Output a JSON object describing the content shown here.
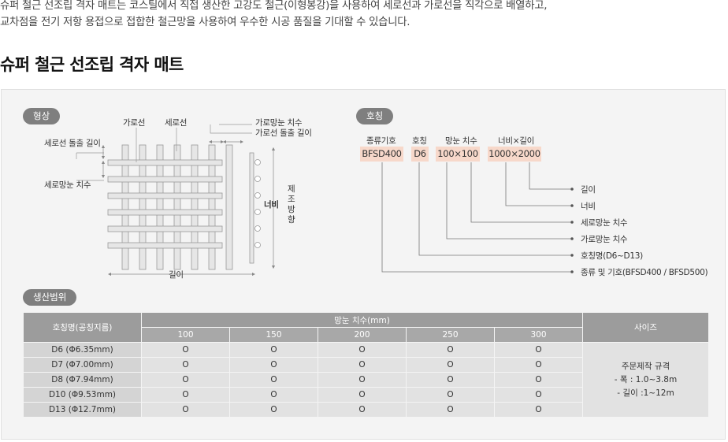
{
  "intro": {
    "line1": "슈퍼 철근 선조립 격자 매트는 코스틸에서 직접 생산한 고강도 철근(이형봉강)을 사용하여 세로선과 가로선을 직각으로 배열하고,",
    "line2": "교차점을 전기 저항 용접으로 접합한 철근망을 사용하여 우수한 시공 품질을 기대할 수 있습니다."
  },
  "title": "슈퍼 철근 선조립 격자 매트",
  "shape": {
    "badge": "형상",
    "labels": {
      "horizontal_bar": "가로선",
      "vertical_bar": "세로선",
      "horizontal_spacing": "가로망눈 치수",
      "horizontal_overhang": "가로선 돌출 길이",
      "vertical_overhang": "세로선 돌출 길이",
      "vertical_spacing": "세로망눈 치수",
      "width": "너비",
      "length": "길이",
      "direction_chars": [
        "제",
        "조",
        "방",
        "향"
      ]
    }
  },
  "designation": {
    "badge": "호칭",
    "headers": [
      "종류기호",
      "호칭",
      "망눈 치수",
      "너비×길이"
    ],
    "values": [
      "BFSD400",
      "D6",
      "100×100",
      "1000×2000"
    ],
    "legend": [
      "길이",
      "너비",
      "세로망눈 치수",
      "가로망눈 치수",
      "호칭명(D6~D13)",
      "종류 및 기호(BFSD400 / BFSD500)"
    ]
  },
  "range": {
    "badge": "생산범위",
    "col_name": "호칭명(공칭지름)",
    "col_mesh": "망눈 치수(mm)",
    "col_size": "사이즈",
    "mesh_sizes": [
      "100",
      "150",
      "200",
      "250",
      "300"
    ],
    "rows": [
      {
        "name": "D6 (Φ6.35mm)",
        "values": [
          "O",
          "O",
          "O",
          "O",
          "O"
        ]
      },
      {
        "name": "D7 (Φ7.00mm)",
        "values": [
          "O",
          "O",
          "O",
          "O",
          "O"
        ]
      },
      {
        "name": "D8 (Φ7.94mm)",
        "values": [
          "O",
          "O",
          "O",
          "O",
          "O"
        ]
      },
      {
        "name": "D10 (Φ9.53mm)",
        "values": [
          "O",
          "O",
          "O",
          "O",
          "O"
        ]
      },
      {
        "name": "D13 (Φ12.7mm)",
        "values": [
          "O",
          "O",
          "O",
          "O",
          "O"
        ]
      }
    ],
    "size_lines": [
      "주문제작 규격",
      "- 폭 : 1.0~3.8m",
      "- 길이 :1~12m"
    ]
  }
}
